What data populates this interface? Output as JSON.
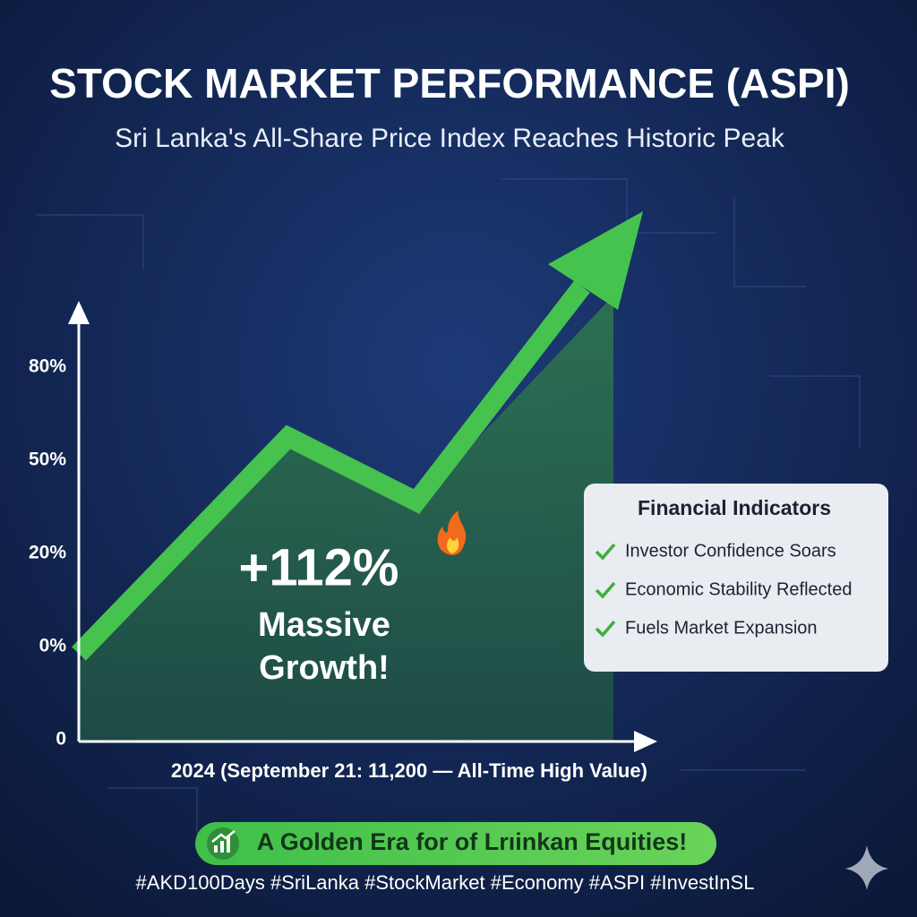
{
  "chart_data": {
    "type": "line",
    "title": "STOCK MARKET PERFORMANCE (ASPI)",
    "subtitle": "Sri Lanka's All-Share Price Index Reaches Historic Peak",
    "y_axis_labels": [
      "80%",
      "50%",
      "20%",
      "0%",
      "0"
    ],
    "x_axis_label": "2024 (September 21:  11,200 — All-Time High Value)",
    "annotation": {
      "headline": "+112%",
      "lines": [
        "Massive",
        "Growth!"
      ]
    },
    "indicators": {
      "title": "Financial Indicators",
      "items": [
        "Investor Confidence Soars",
        "Economic Stability Reflected",
        "Fuels Market Expansion"
      ]
    },
    "banner": "A Golden Era for of Lrıinkan Equities!",
    "hashtags": "#AKD100Days #SriLanka #StockMarket #Economy #ASPI #InvestInSL"
  }
}
